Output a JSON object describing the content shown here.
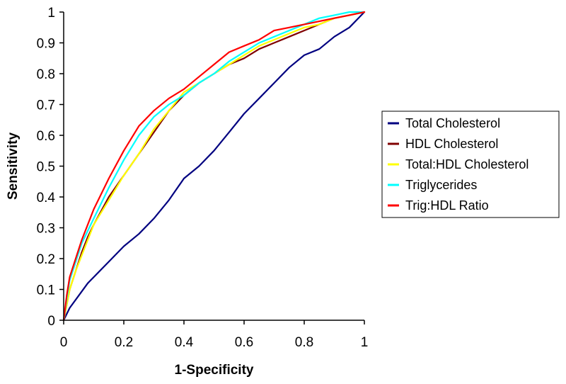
{
  "chart_data": {
    "type": "line",
    "title": "",
    "xlabel": "1-Specificity",
    "ylabel": "Sensitivity",
    "xlim": [
      0,
      1
    ],
    "ylim": [
      0,
      1
    ],
    "grid": false,
    "legend_position": "right",
    "x_ticks": [
      {
        "value": 0,
        "label": "0"
      },
      {
        "value": 0.2,
        "label": "0.2"
      },
      {
        "value": 0.4,
        "label": "0.4"
      },
      {
        "value": 0.6,
        "label": "0.6"
      },
      {
        "value": 0.8,
        "label": "0.8"
      },
      {
        "value": 1,
        "label": "1"
      }
    ],
    "y_ticks": [
      {
        "value": 0,
        "label": "0"
      },
      {
        "value": 0.1,
        "label": "0.1"
      },
      {
        "value": 0.2,
        "label": "0.2"
      },
      {
        "value": 0.3,
        "label": "0.3"
      },
      {
        "value": 0.4,
        "label": "0.4"
      },
      {
        "value": 0.5,
        "label": "0.5"
      },
      {
        "value": 0.6,
        "label": "0.6"
      },
      {
        "value": 0.7,
        "label": "0.7"
      },
      {
        "value": 0.8,
        "label": "0.8"
      },
      {
        "value": 0.9,
        "label": "0.9"
      },
      {
        "value": 1,
        "label": "1"
      }
    ],
    "series": [
      {
        "name": "Total Cholesterol",
        "color": "#000080",
        "x": [
          0,
          0.02,
          0.05,
          0.08,
          0.1,
          0.15,
          0.2,
          0.25,
          0.3,
          0.35,
          0.4,
          0.45,
          0.5,
          0.55,
          0.6,
          0.65,
          0.7,
          0.75,
          0.8,
          0.85,
          0.9,
          0.95,
          1.0
        ],
        "y": [
          0,
          0.04,
          0.08,
          0.12,
          0.14,
          0.19,
          0.24,
          0.28,
          0.33,
          0.39,
          0.46,
          0.5,
          0.55,
          0.61,
          0.67,
          0.72,
          0.77,
          0.82,
          0.86,
          0.88,
          0.92,
          0.95,
          1.0
        ]
      },
      {
        "name": "HDL Cholesterol",
        "color": "#800000",
        "x": [
          0,
          0.01,
          0.02,
          0.04,
          0.06,
          0.08,
          0.1,
          0.15,
          0.2,
          0.25,
          0.3,
          0.35,
          0.4,
          0.45,
          0.5,
          0.55,
          0.6,
          0.65,
          0.7,
          0.75,
          0.8,
          0.85,
          0.9,
          0.95,
          1.0
        ],
        "y": [
          0,
          0.05,
          0.1,
          0.16,
          0.22,
          0.27,
          0.31,
          0.4,
          0.47,
          0.54,
          0.61,
          0.68,
          0.73,
          0.77,
          0.8,
          0.83,
          0.85,
          0.88,
          0.9,
          0.92,
          0.94,
          0.96,
          0.98,
          0.99,
          1.0
        ]
      },
      {
        "name": "Total:HDL Cholesterol",
        "color": "#FFFF00",
        "x": [
          0,
          0.01,
          0.02,
          0.04,
          0.06,
          0.08,
          0.1,
          0.15,
          0.2,
          0.25,
          0.3,
          0.35,
          0.4,
          0.45,
          0.5,
          0.55,
          0.6,
          0.65,
          0.7,
          0.75,
          0.8,
          0.85,
          0.9,
          0.95,
          1.0
        ],
        "y": [
          0,
          0.05,
          0.1,
          0.16,
          0.21,
          0.26,
          0.31,
          0.39,
          0.47,
          0.54,
          0.62,
          0.68,
          0.74,
          0.77,
          0.8,
          0.83,
          0.86,
          0.89,
          0.91,
          0.93,
          0.95,
          0.96,
          0.98,
          0.99,
          1.0
        ]
      },
      {
        "name": "Triglycerides",
        "color": "#00FFFF",
        "x": [
          0,
          0.01,
          0.02,
          0.04,
          0.06,
          0.08,
          0.1,
          0.15,
          0.2,
          0.25,
          0.3,
          0.35,
          0.4,
          0.45,
          0.5,
          0.55,
          0.6,
          0.65,
          0.7,
          0.75,
          0.8,
          0.85,
          0.9,
          0.95,
          1.0
        ],
        "y": [
          0,
          0.07,
          0.13,
          0.19,
          0.25,
          0.29,
          0.33,
          0.43,
          0.52,
          0.6,
          0.66,
          0.7,
          0.73,
          0.77,
          0.8,
          0.84,
          0.87,
          0.9,
          0.92,
          0.94,
          0.96,
          0.98,
          0.99,
          1.0,
          1.0
        ]
      },
      {
        "name": "Trig:HDL Ratio",
        "color": "#FF0000",
        "x": [
          0,
          0.01,
          0.02,
          0.04,
          0.06,
          0.08,
          0.1,
          0.15,
          0.2,
          0.25,
          0.3,
          0.35,
          0.4,
          0.45,
          0.5,
          0.55,
          0.6,
          0.65,
          0.7,
          0.75,
          0.8,
          0.85,
          0.9,
          0.95,
          1.0
        ],
        "y": [
          0,
          0.08,
          0.14,
          0.2,
          0.26,
          0.31,
          0.36,
          0.46,
          0.55,
          0.63,
          0.68,
          0.72,
          0.75,
          0.79,
          0.83,
          0.87,
          0.89,
          0.91,
          0.94,
          0.95,
          0.96,
          0.97,
          0.98,
          0.99,
          1.0
        ]
      }
    ]
  }
}
